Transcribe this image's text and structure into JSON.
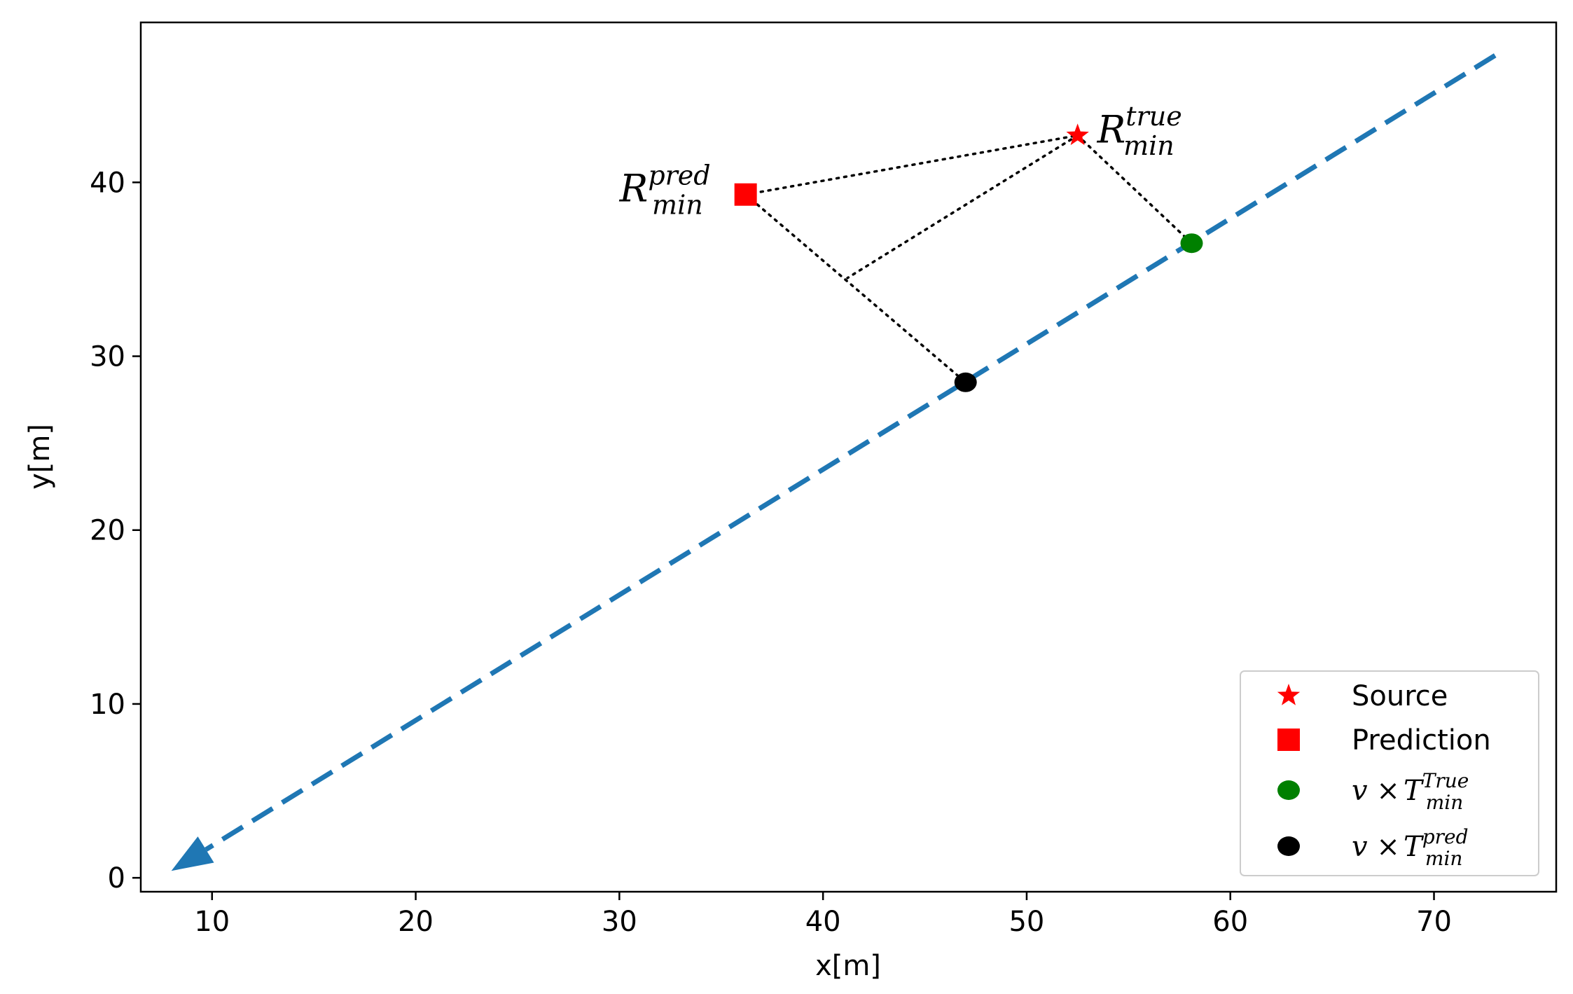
{
  "chart_data": {
    "type": "scatter",
    "title": "",
    "xlabel": "x[m]",
    "ylabel": "y[m]",
    "xlim": [
      6.5,
      76
    ],
    "ylim": [
      -0.8,
      49.2
    ],
    "xticks": [
      10,
      20,
      30,
      40,
      50,
      60,
      70
    ],
    "yticks": [
      0,
      10,
      20,
      30,
      40
    ],
    "grid": false,
    "legend_position": "lower-right",
    "trajectory": {
      "style": "dashed",
      "color": "#1f77b4",
      "start": [
        73,
        47.3
      ],
      "end": [
        8,
        0.4
      ],
      "arrowhead_at": "end"
    },
    "points": {
      "source": {
        "x": 52.5,
        "y": 42.7,
        "marker": "star",
        "color": "#ff0000"
      },
      "prediction": {
        "x": 36.2,
        "y": 39.3,
        "marker": "square",
        "color": "#ff0000"
      },
      "true_closest": {
        "x": 58.1,
        "y": 36.5,
        "marker": "circle",
        "color": "#008000"
      },
      "pred_closest": {
        "x": 47.0,
        "y": 28.5,
        "marker": "circle",
        "color": "#000000"
      }
    },
    "connectors": {
      "style": "dotted",
      "color": "#000000",
      "segments": [
        {
          "from": [
            36.2,
            39.3
          ],
          "to": [
            52.5,
            42.7
          ]
        },
        {
          "from": [
            52.5,
            42.7
          ],
          "to": [
            58.1,
            36.5
          ]
        },
        {
          "from": [
            36.2,
            39.3
          ],
          "to": [
            47.0,
            28.5
          ]
        },
        {
          "from": [
            52.5,
            42.7
          ],
          "to": [
            41.2,
            34.5
          ]
        }
      ]
    },
    "annotations": [
      {
        "id": "r_pred",
        "base": "R",
        "sup": "pred",
        "sub": "min",
        "anchor": [
          36.2,
          39.3
        ]
      },
      {
        "id": "r_true",
        "base": "R",
        "sup": "true",
        "sub": "min",
        "anchor": [
          52.5,
          42.7
        ]
      }
    ],
    "legend": [
      {
        "id": "source",
        "label": "Source",
        "marker": "star",
        "color": "#ff0000"
      },
      {
        "id": "prediction",
        "label": "Prediction",
        "marker": "square",
        "color": "#ff0000"
      },
      {
        "id": "true",
        "label_prefix": "v × ",
        "base": "T",
        "sup": "True",
        "sub": "min",
        "marker": "circle",
        "color": "#008000"
      },
      {
        "id": "pred",
        "label_prefix": "v × ",
        "base": "T",
        "sup": "pred",
        "sub": "min",
        "marker": "circle",
        "color": "#000000"
      }
    ]
  }
}
